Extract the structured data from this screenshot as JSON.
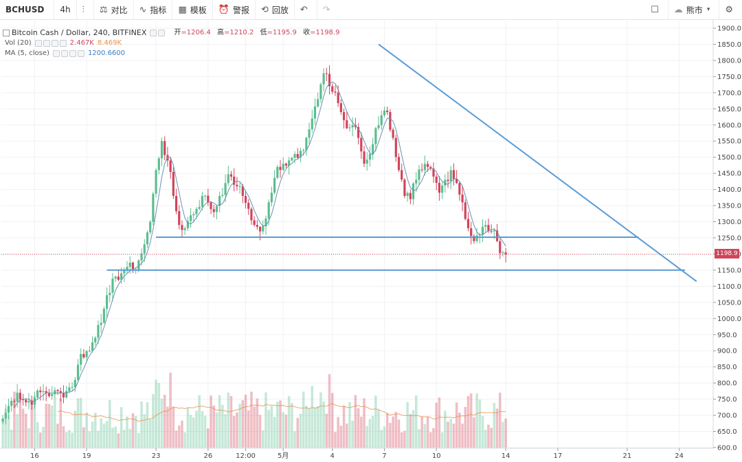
{
  "toolbar": {
    "symbol": "BCHUSD",
    "interval": "4h",
    "compare": "对比",
    "indicators": "指标",
    "templates": "模板",
    "alerts": "警报",
    "replay": "回放",
    "theme": "熊市"
  },
  "legend": {
    "title": "Bitcoin Cash / Dollar, 240, BITFINEX",
    "open_key": "开",
    "open": "=1206.4",
    "high_key": "高",
    "high": "=1210.2",
    "low_key": "低",
    "low": "=1195.9",
    "close_key": "收",
    "close": "=1198.9",
    "vol_label": "Vol (20)",
    "vol_value": "2.467K",
    "vol_ma": "8.469K",
    "ma_label": "MA (5, close)",
    "ma_value": "1200.6600"
  },
  "last_price": "1198.9",
  "colors": {
    "up": "#5bbd8e",
    "down": "#d0445a",
    "trend": "#5b9bd5",
    "ma": "#6b8fb3",
    "vol_ma": "#e8904c"
  },
  "chart_data": {
    "type": "candlestick",
    "y_ticks": [
      "1900.0",
      "1850.0",
      "1800.0",
      "1750.0",
      "1700.0",
      "1650.0",
      "1600.0",
      "1550.0",
      "1500.0",
      "1450.0",
      "1400.0",
      "1350.0",
      "1300.0",
      "1250.0",
      "1200.0",
      "1150.0",
      "1100.0",
      "1050.0",
      "1000.0",
      "950.0",
      "900.0",
      "850.0",
      "800.0",
      "750.0",
      "700.0",
      "650.0",
      "600.0"
    ],
    "ylim": [
      600,
      1900
    ],
    "x_ticks": [
      {
        "label": "16",
        "i": 11
      },
      {
        "label": "19",
        "i": 29
      },
      {
        "label": "23",
        "i": 53
      },
      {
        "label": "26",
        "i": 71
      },
      {
        "label": "12:00",
        "i": 84
      },
      {
        "label": "5月",
        "i": 97
      },
      {
        "label": "4",
        "i": 114
      },
      {
        "label": "7",
        "i": 132
      },
      {
        "label": "10",
        "i": 150
      },
      {
        "label": "14",
        "i": 174
      },
      {
        "label": "17",
        "i": 192
      },
      {
        "label": "21",
        "i": 216
      },
      {
        "label": "24",
        "i": 234
      }
    ],
    "n_slots": 246,
    "anchors": [
      [
        0,
        690
      ],
      [
        3,
        745
      ],
      [
        5,
        770
      ],
      [
        8,
        740
      ],
      [
        11,
        755
      ],
      [
        14,
        775
      ],
      [
        17,
        765
      ],
      [
        20,
        770
      ],
      [
        22,
        775
      ],
      [
        25,
        810
      ],
      [
        27,
        890
      ],
      [
        30,
        900
      ],
      [
        33,
        980
      ],
      [
        35,
        1030
      ],
      [
        37,
        1080
      ],
      [
        39,
        1130
      ],
      [
        41,
        1140
      ],
      [
        43,
        1160
      ],
      [
        45,
        1150
      ],
      [
        47,
        1180
      ],
      [
        49,
        1230
      ],
      [
        51,
        1300
      ],
      [
        53,
        1460
      ],
      [
        55,
        1550
      ],
      [
        57,
        1490
      ],
      [
        59,
        1380
      ],
      [
        61,
        1290
      ],
      [
        63,
        1280
      ],
      [
        65,
        1320
      ],
      [
        67,
        1340
      ],
      [
        69,
        1380
      ],
      [
        71,
        1360
      ],
      [
        73,
        1330
      ],
      [
        75,
        1380
      ],
      [
        77,
        1420
      ],
      [
        79,
        1440
      ],
      [
        81,
        1410
      ],
      [
        83,
        1380
      ],
      [
        85,
        1340
      ],
      [
        87,
        1290
      ],
      [
        89,
        1270
      ],
      [
        91,
        1310
      ],
      [
        93,
        1390
      ],
      [
        95,
        1470
      ],
      [
        97,
        1480
      ],
      [
        99,
        1490
      ],
      [
        101,
        1510
      ],
      [
        103,
        1520
      ],
      [
        105,
        1560
      ],
      [
        107,
        1620
      ],
      [
        109,
        1680
      ],
      [
        111,
        1760
      ],
      [
        113,
        1720
      ],
      [
        115,
        1700
      ],
      [
        117,
        1640
      ],
      [
        119,
        1590
      ],
      [
        121,
        1600
      ],
      [
        123,
        1560
      ],
      [
        125,
        1480
      ],
      [
        127,
        1510
      ],
      [
        129,
        1590
      ],
      [
        131,
        1630
      ],
      [
        133,
        1640
      ],
      [
        135,
        1560
      ],
      [
        137,
        1460
      ],
      [
        139,
        1380
      ],
      [
        141,
        1370
      ],
      [
        143,
        1430
      ],
      [
        145,
        1460
      ],
      [
        147,
        1470
      ],
      [
        149,
        1440
      ],
      [
        151,
        1390
      ],
      [
        153,
        1430
      ],
      [
        155,
        1460
      ],
      [
        157,
        1420
      ],
      [
        159,
        1360
      ],
      [
        161,
        1280
      ],
      [
        163,
        1240
      ],
      [
        165,
        1260
      ],
      [
        167,
        1290
      ],
      [
        169,
        1270
      ],
      [
        171,
        1240
      ],
      [
        173,
        1205
      ],
      [
        174,
        1199
      ]
    ],
    "trendlines": [
      {
        "name": "resistance",
        "from": [
          130,
          1850
        ],
        "to": [
          240,
          1115
        ]
      },
      {
        "name": "support-1250",
        "from": [
          53,
          1252
        ],
        "to": [
          220,
          1252
        ]
      },
      {
        "name": "support-1150",
        "from": [
          36,
          1150
        ],
        "to": [
          236,
          1150
        ]
      }
    ],
    "volume_scale_max": 9000
  }
}
